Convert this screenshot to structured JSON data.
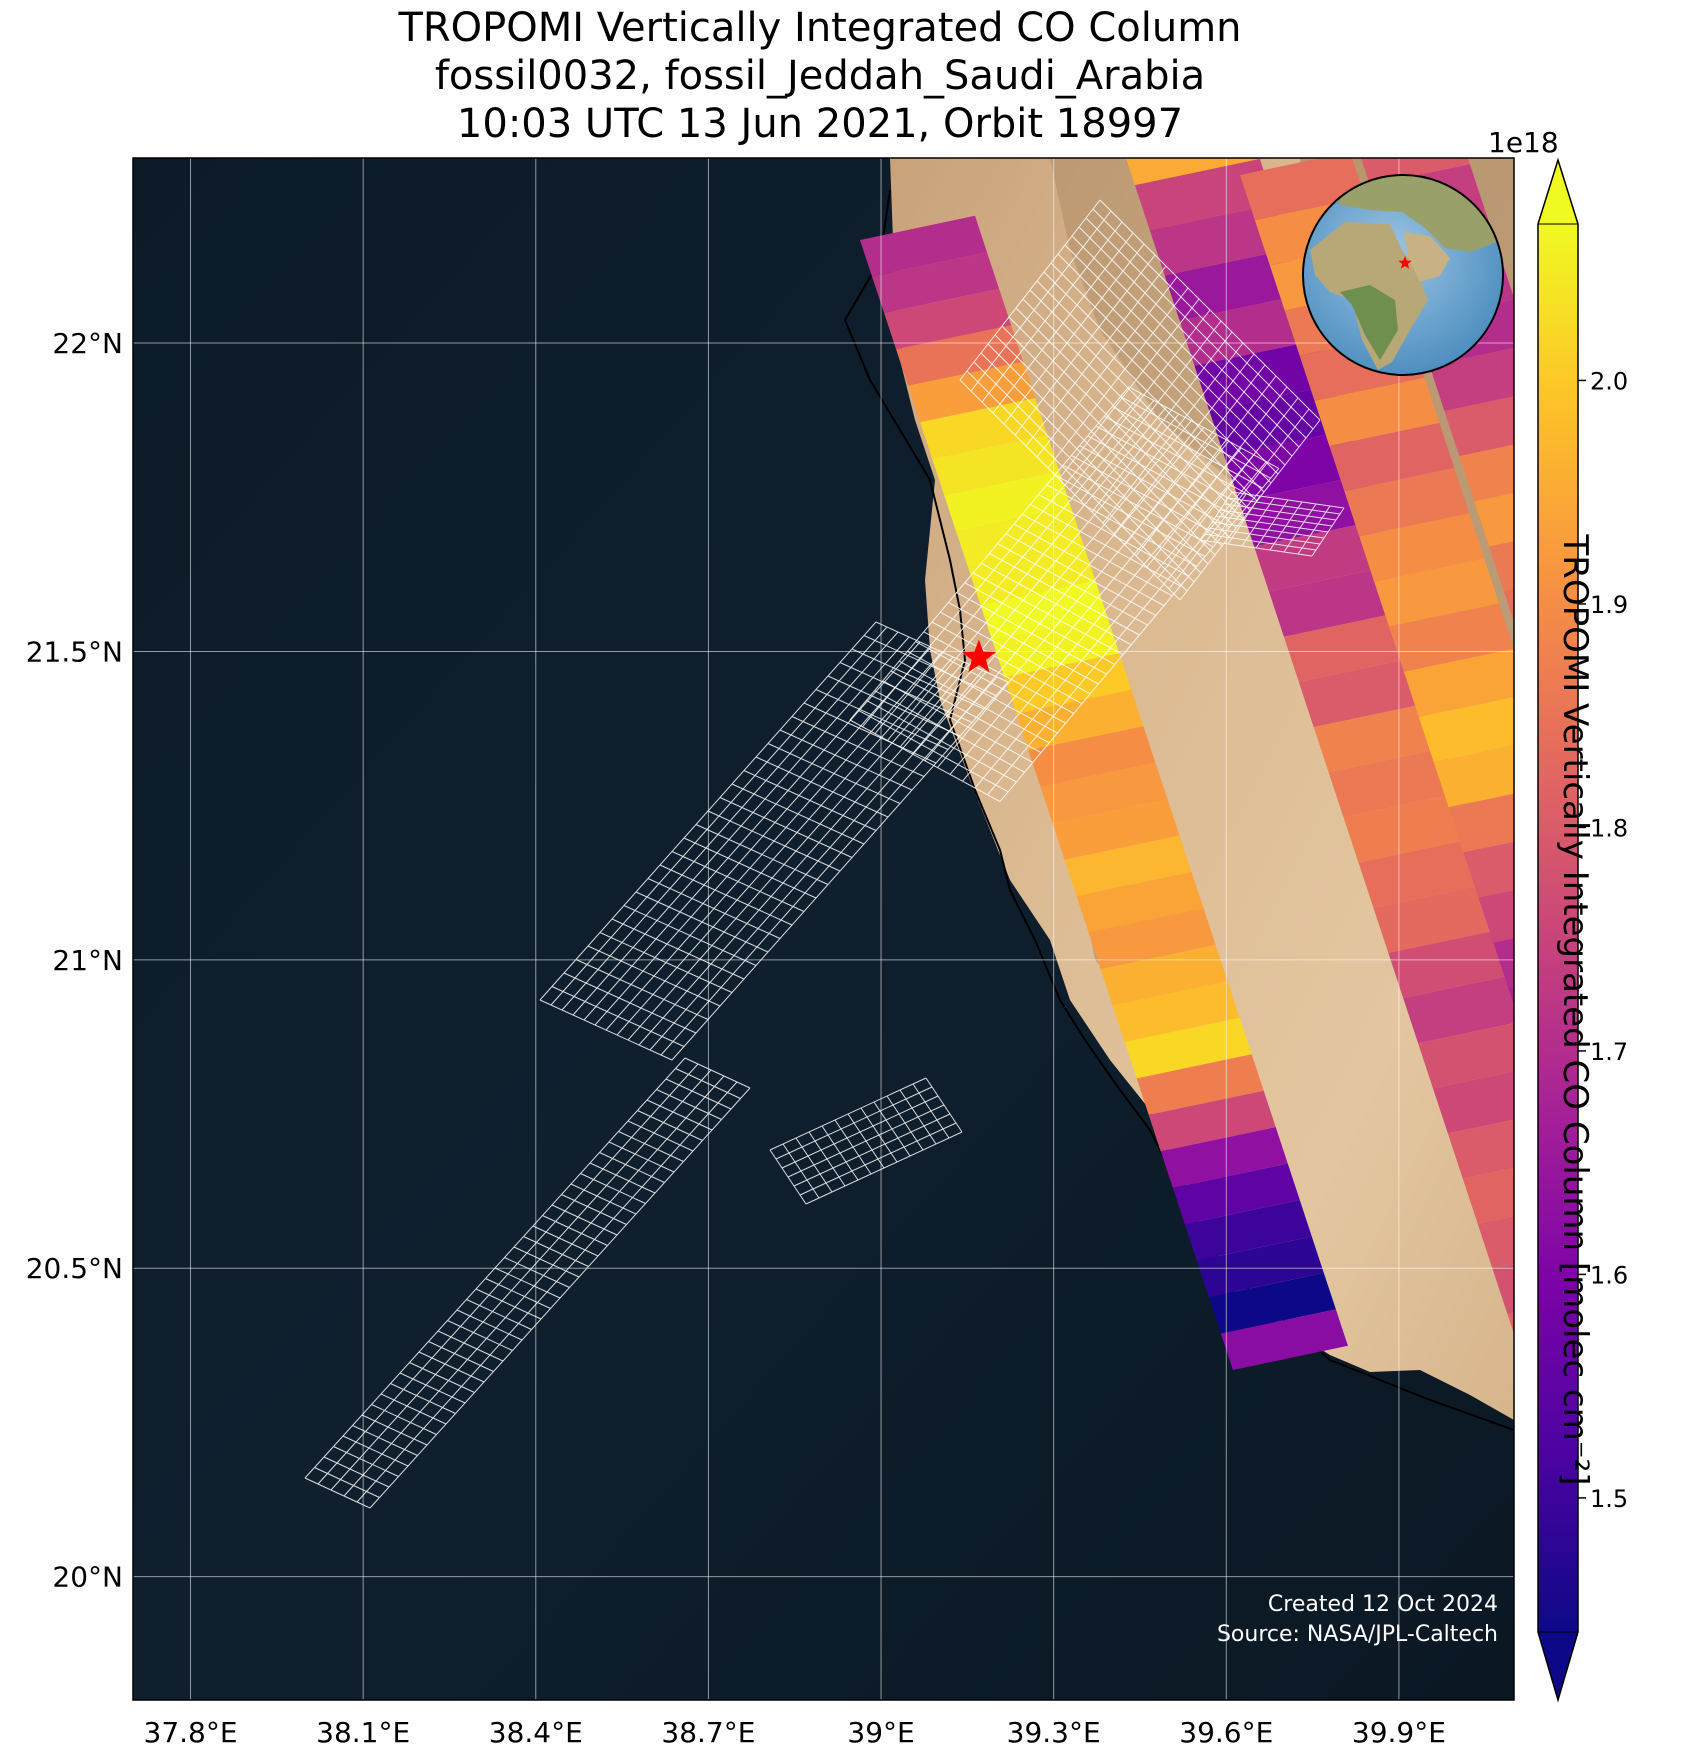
{
  "title": {
    "line1": "TROPOMI Vertically Integrated CO Column",
    "line2": "fossil0032, fossil_Jeddah_Saudi_Arabia",
    "line3": "10:03 UTC 13 Jun 2021, Orbit 18997"
  },
  "map": {
    "lon_range": [
      37.7,
      40.1
    ],
    "lat_range": [
      19.8,
      22.3
    ],
    "xticks": [
      {
        "value": 37.8,
        "label": "37.8°E"
      },
      {
        "value": 38.1,
        "label": "38.1°E"
      },
      {
        "value": 38.4,
        "label": "38.4°E"
      },
      {
        "value": 38.7,
        "label": "38.7°E"
      },
      {
        "value": 39.0,
        "label": "39°E"
      },
      {
        "value": 39.3,
        "label": "39.3°E"
      },
      {
        "value": 39.6,
        "label": "39.6°E"
      },
      {
        "value": 39.9,
        "label": "39.9°E"
      }
    ],
    "yticks": [
      {
        "value": 22.0,
        "label": "22°N"
      },
      {
        "value": 21.5,
        "label": "21.5°N"
      },
      {
        "value": 21.0,
        "label": "21°N"
      },
      {
        "value": 20.5,
        "label": "20.5°N"
      },
      {
        "value": 20.0,
        "label": "20°N"
      }
    ],
    "gridlines": true,
    "site_marker": {
      "lon": 39.17,
      "lat": 21.49,
      "color": "#ff0000",
      "symbol": "star"
    },
    "background": {
      "ocean_color": "#0c1a28",
      "land_color": "#d8b48a"
    },
    "inset": "globe-locator"
  },
  "chart_data": {
    "type": "heatmap",
    "colormap": "plasma",
    "scale_multiplier": "1e18",
    "colorbar": {
      "label": "TROPOMI Vertically Integrated CO Column [molec cm⁻²]",
      "multiplier_label": "1e18",
      "range": [
        1.44,
        2.07
      ],
      "ticks": [
        {
          "value": 1.5,
          "label": "1.5"
        },
        {
          "value": 1.6,
          "label": "1.6"
        },
        {
          "value": 1.7,
          "label": "1.7"
        },
        {
          "value": 1.8,
          "label": "1.8"
        },
        {
          "value": 1.9,
          "label": "1.9"
        },
        {
          "value": 2.0,
          "label": "2.0"
        }
      ],
      "extend": "both"
    },
    "swaths": [
      {
        "values": [
          1.7,
          1.72,
          1.76,
          1.85,
          1.93,
          2.02,
          2.04,
          2.06,
          2.05,
          2.05,
          2.07,
          2.06,
          2.0,
          1.96,
          1.9,
          1.92,
          1.93,
          1.97,
          1.94,
          1.92,
          1.96,
          1.98,
          2.02,
          1.87,
          1.76,
          1.63,
          1.55,
          1.5,
          1.48,
          1.44,
          1.62
        ]
      },
      {
        "values": [
          1.95,
          1.75,
          1.72,
          1.65,
          1.7,
          1.58,
          1.56,
          1.6,
          1.63,
          1.73,
          1.72,
          1.82,
          1.8,
          1.88,
          1.86,
          1.87,
          1.84,
          1.83,
          1.77,
          1.74,
          1.78,
          1.76,
          1.8,
          1.82,
          1.8,
          1.78,
          1.82,
          1.8,
          1.86,
          1.9,
          1.88
        ]
      },
      {
        "values": [
          1.84,
          1.9,
          1.92,
          1.86,
          1.84,
          1.9,
          1.82,
          1.86,
          1.9,
          1.92,
          1.88,
          1.94,
          1.98,
          1.96,
          1.86,
          1.8,
          1.76,
          1.7,
          1.68,
          1.72,
          1.76,
          1.7,
          1.74,
          1.78,
          1.76,
          1.8,
          1.82,
          1.84,
          1.88,
          1.92,
          1.93
        ]
      },
      {
        "values": [
          1.8,
          1.74,
          1.76,
          1.72,
          1.7,
          1.74,
          1.8,
          1.88,
          1.92,
          1.86,
          1.84,
          1.96,
          1.98,
          1.92,
          1.88,
          1.96,
          1.93,
          1.86,
          1.84,
          1.88,
          1.9,
          1.8,
          1.78,
          1.76,
          1.8,
          1.82,
          1.78,
          1.74,
          1.7,
          1.72,
          1.76
        ]
      }
    ],
    "pixel_outlines": "white-wireframe-footprints"
  },
  "credits": {
    "line1": "Created 12 Oct 2024",
    "line2": "Source: NASA/JPL-Caltech"
  }
}
